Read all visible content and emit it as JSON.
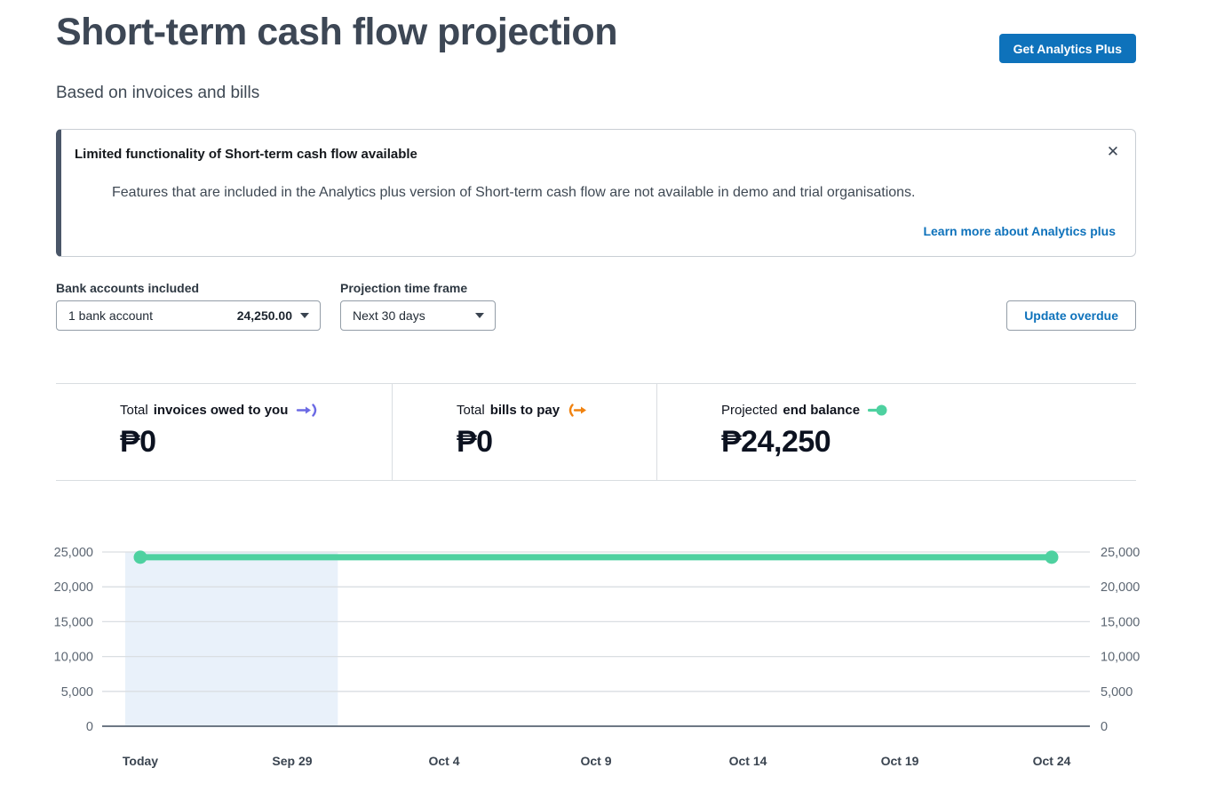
{
  "page": {
    "title": "Short-term cash flow projection",
    "subtitle": "Based on invoices and bills"
  },
  "header": {
    "cta_label": "Get Analytics Plus"
  },
  "notice": {
    "title": "Limited functionality of Short-term cash flow available",
    "body": "Features that are included in the Analytics plus version of Short-term cash flow are not available in demo and trial organisations.",
    "link_label": "Learn more about Analytics plus",
    "close_glyph": "✕"
  },
  "filters": {
    "bank_accounts": {
      "label": "Bank accounts included",
      "value": "1 bank account",
      "amount": "24,250.00"
    },
    "time_frame": {
      "label": "Projection time frame",
      "value": "Next 30 days"
    },
    "update_overdue_label": "Update overdue"
  },
  "summary": {
    "cards": [
      {
        "prefix": "Total",
        "label": "invoices owed to you",
        "value": "₱0",
        "icon": "incoming-cash-icon"
      },
      {
        "prefix": "Total",
        "label": "bills to pay",
        "value": "₱0",
        "icon": "outgoing-cash-icon"
      },
      {
        "prefix": "Projected",
        "label": "end balance",
        "value": "₱24,250",
        "icon": "balance-line-icon"
      }
    ]
  },
  "chart_data": {
    "type": "line",
    "title": "Short-term cash flow projection chart",
    "x_labels": [
      "Today",
      "Sep 29",
      "Oct 4",
      "Oct 9",
      "Oct 14",
      "Oct 19",
      "Oct 24"
    ],
    "days_per_tick": 5,
    "series": [
      {
        "name": "Projected end balance",
        "values": [
          24250,
          24250,
          24250,
          24250,
          24250,
          24250,
          24250
        ]
      }
    ],
    "ylim": [
      0,
      25000
    ],
    "yticks": [
      0,
      5000,
      10000,
      15000,
      20000,
      25000
    ],
    "ytick_labels": [
      "0",
      "5,000",
      "10,000",
      "15,000",
      "20,000",
      "25,000"
    ],
    "grid": true,
    "dual_y_axis": true,
    "legend": "none",
    "markers": "endpoints",
    "highlight_region": {
      "from_day": -0.5,
      "to_day": 6.5
    }
  },
  "colors": {
    "heading": "#3d4755",
    "text": "#3f4954",
    "blue": "#0e72bb",
    "notice-accent": "#4a5668",
    "border": "#c9ced4",
    "control-border": "#939da7",
    "divider": "#d9dde1",
    "grid": "#dadee2",
    "axis-zero": "#6d7884",
    "axis-label": "#5c6672",
    "x-label": "#3a4450",
    "green": "#4ed1a0",
    "purple": "#6b6ae4",
    "orange": "#f0820f",
    "shade": "#e9f1fa",
    "value": "#0c1220"
  }
}
